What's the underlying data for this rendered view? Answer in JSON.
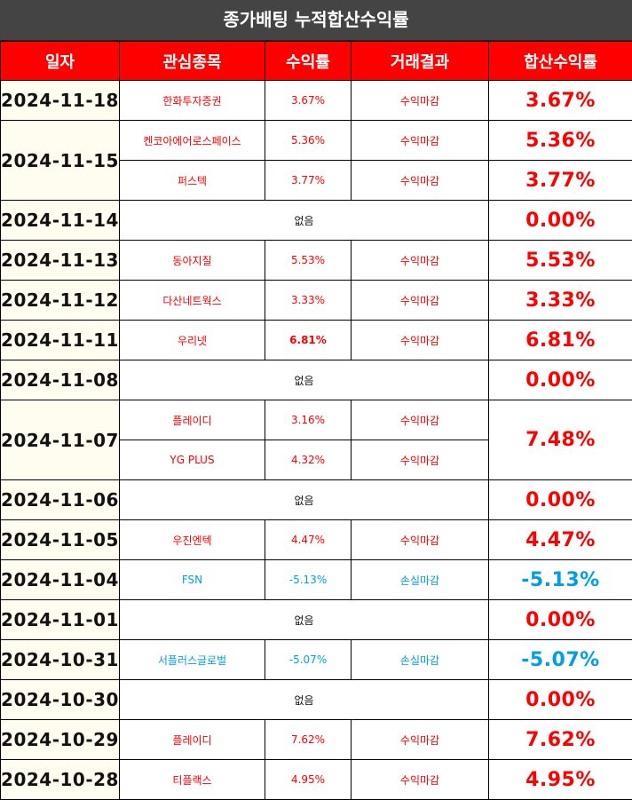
{
  "title": "종가배팅 누적합산수익률",
  "headers": [
    "일자",
    "관심종목",
    "수익률",
    "거래결과",
    "합산수익률"
  ],
  "colors": {
    "header_bg": "#ff0000",
    "title_bg": "#444444",
    "gain": "#ff0000",
    "loss": "#00a0e0",
    "date_bg": "#fffdf0"
  },
  "rows": [
    {
      "date": "2024-11-18",
      "stocks": [
        {
          "name": "한화투자증권",
          "rate": "3.67%",
          "result": "수익마감"
        }
      ],
      "total": "3.67%",
      "loss": false
    },
    {
      "date": "2024-11-15",
      "stocks": [
        {
          "name": "켄코아에어로스페이스",
          "rate": "5.36%",
          "result": "수익마감",
          "total": "5.36%"
        },
        {
          "name": "퍼스텍",
          "rate": "3.77%",
          "result": "수익마감",
          "total": "3.77%"
        }
      ],
      "loss": false
    },
    {
      "date": "2024-11-14",
      "none": "없음",
      "total": "0.00%"
    },
    {
      "date": "2024-11-13",
      "stocks": [
        {
          "name": "동아지질",
          "rate": "5.53%",
          "result": "수익마감"
        }
      ],
      "total": "5.53%",
      "loss": false
    },
    {
      "date": "2024-11-12",
      "stocks": [
        {
          "name": "다산네트웍스",
          "rate": "3.33%",
          "result": "수익마감"
        }
      ],
      "total": "3.33%",
      "loss": false
    },
    {
      "date": "2024-11-11",
      "stocks": [
        {
          "name": "우리넷",
          "rate": "6.81%",
          "result": "수익마감"
        }
      ],
      "total": "6.81%",
      "loss": false
    },
    {
      "date": "2024-11-08",
      "none": "없음",
      "total": "0.00%"
    },
    {
      "date": "2024-11-07",
      "stocks": [
        {
          "name": "플레이디",
          "rate": "3.16%",
          "result": "수익마감"
        },
        {
          "name": "YG PLUS",
          "rate": "4.32%",
          "result": "수익마감"
        }
      ],
      "total": "7.48%",
      "loss": false
    },
    {
      "date": "2024-11-06",
      "none": "없음",
      "total": "0.00%"
    },
    {
      "date": "2024-11-05",
      "stocks": [
        {
          "name": "우진엔텍",
          "rate": "4.47%",
          "result": "수익마감"
        }
      ],
      "total": "4.47%",
      "loss": false
    },
    {
      "date": "2024-11-04",
      "stocks": [
        {
          "name": "FSN",
          "rate": "-5.13%",
          "result": "손실마감"
        }
      ],
      "total": "-5.13%",
      "loss": true
    },
    {
      "date": "2024-11-01",
      "none": "없음",
      "total": "0.00%"
    },
    {
      "date": "2024-10-31",
      "stocks": [
        {
          "name": "서플러스글로벌",
          "rate": "-5.07%",
          "result": "손실마감"
        }
      ],
      "total": "-5.07%",
      "loss": true
    },
    {
      "date": "2024-10-30",
      "none": "없음",
      "total": "0.00%"
    },
    {
      "date": "2024-10-29",
      "stocks": [
        {
          "name": "플레이디",
          "rate": "7.62%",
          "result": "수익마감"
        }
      ],
      "total": "7.62%",
      "loss": false
    },
    {
      "date": "2024-10-28",
      "stocks": [
        {
          "name": "티플랙스",
          "rate": "4.95%",
          "result": "수익마감"
        }
      ],
      "total": "4.95%",
      "loss": false
    }
  ]
}
